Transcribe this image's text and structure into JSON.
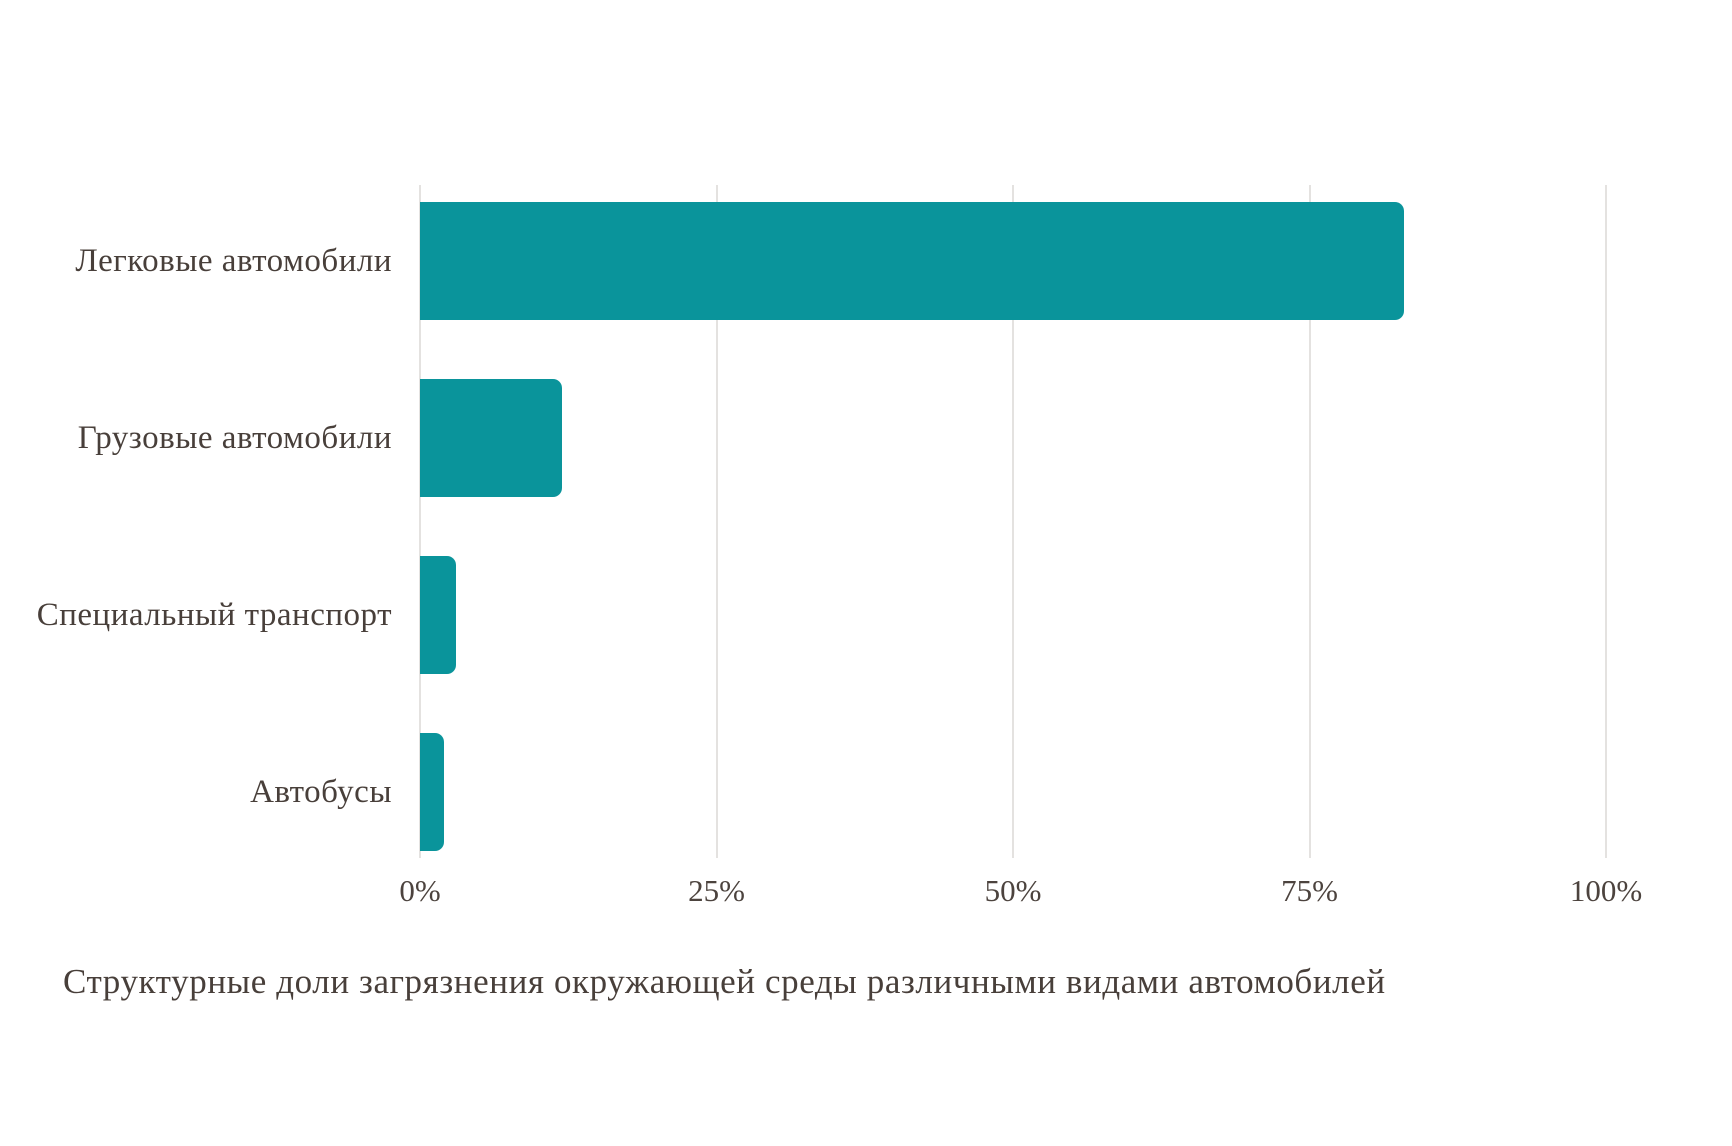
{
  "chart_data": {
    "type": "bar",
    "orientation": "horizontal",
    "title": "Структурные доли загрязнения окружающей среды различными видами автомобилей",
    "categories": [
      "Легковые автомобили",
      "Грузовые автомобили",
      "Специальный транспорт",
      "Автобусы"
    ],
    "values": [
      83,
      12,
      3,
      2
    ],
    "unit": "%",
    "xlabel": "",
    "ylabel": "",
    "xlim": [
      0,
      100
    ],
    "x_ticks": [
      {
        "value": 0,
        "label": "0%"
      },
      {
        "value": 25,
        "label": "25%"
      },
      {
        "value": 50,
        "label": "50%"
      },
      {
        "value": 75,
        "label": "75%"
      },
      {
        "value": 100,
        "label": "100%"
      }
    ],
    "grid": "vertical",
    "legend": "none",
    "bar_color": "#0a949b",
    "gridline_color": "#e4e2e0",
    "text_color": "#483f3a",
    "background_color": "#ffffff"
  }
}
